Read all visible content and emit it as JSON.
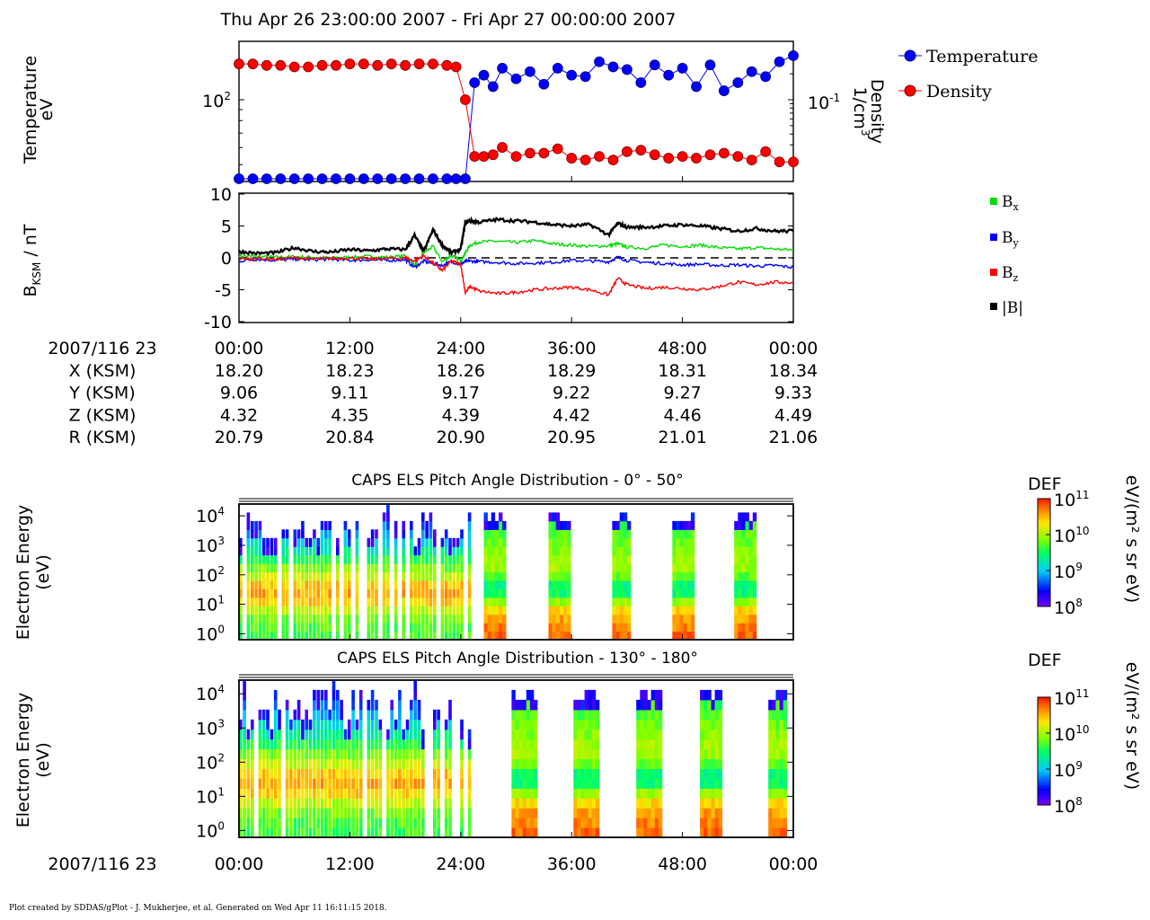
{
  "title": "Thu Apr 26 23:00:00 2007 - Fri Apr 27 00:00:00 2007",
  "footer": "Plot created by SDDAS/gPlot - J. Mukherjee, et al.  Generated on Wed Apr 11 16:11:15 2018.",
  "time_axis": {
    "label": "2007/116 23",
    "ticks": [
      "00:00",
      "12:00",
      "24:00",
      "36:00",
      "48:00",
      "00:00"
    ]
  },
  "ephemeris": [
    {
      "label": "X (KSM)",
      "values": [
        "18.20",
        "18.23",
        "18.26",
        "18.29",
        "18.31",
        "18.34"
      ]
    },
    {
      "label": "Y (KSM)",
      "values": [
        "9.06",
        "9.11",
        "9.17",
        "9.22",
        "9.27",
        "9.33"
      ]
    },
    {
      "label": "Z (KSM)",
      "values": [
        "4.32",
        "4.35",
        "4.39",
        "4.42",
        "4.46",
        "4.49"
      ]
    },
    {
      "label": "R (KSM)",
      "values": [
        "20.79",
        "20.84",
        "20.90",
        "20.95",
        "21.01",
        "21.06"
      ]
    }
  ],
  "colors": {
    "temperature": "#0000ff",
    "density": "#ff0000",
    "bx": "#00dd00",
    "by": "#0000ff",
    "bz": "#ff0000",
    "btot": "#000000"
  },
  "chart_data": [
    {
      "type": "scatter",
      "panel": "plasma moments",
      "ylabel": "Temperature",
      "yunit": "eV",
      "ytick_label": "10",
      "ytick_exp": "2",
      "y2label": "Density",
      "y2unit": "1/cm",
      "y2unit_exp": "3",
      "y2tick_label": "10",
      "y2tick_exp": "-1",
      "xlim": [
        0,
        60
      ],
      "legend_position": "top-right",
      "series": [
        {
          "name": "Temperature",
          "axis": "left",
          "color": "#0000ff",
          "x": [
            0,
            1.5,
            3,
            4.5,
            6,
            7.5,
            9,
            10.5,
            12,
            13.5,
            15,
            16.5,
            18,
            19.5,
            21,
            22.5,
            23.5,
            24.5,
            25.5,
            26.5,
            27.5,
            28.5,
            30,
            31.5,
            33,
            34.5,
            36,
            37.5,
            39,
            40.5,
            42,
            43.5,
            45,
            46.5,
            48,
            49.5,
            51,
            52.5,
            54,
            55.5,
            57,
            58.5,
            60
          ],
          "y": [
            15,
            15,
            16,
            16,
            16,
            17,
            16,
            16,
            16,
            16,
            17,
            17,
            17,
            18,
            19,
            20,
            23,
            32,
            120,
            130,
            115,
            140,
            125,
            135,
            118,
            140,
            130,
            128,
            150,
            142,
            138,
            120,
            145,
            130,
            140,
            115,
            145,
            110,
            120,
            135,
            128,
            150,
            160
          ]
        },
        {
          "name": "Density",
          "axis": "right",
          "color": "#ff0000",
          "x": [
            0,
            1.5,
            3,
            4.5,
            6,
            7.5,
            9,
            10.5,
            12,
            13.5,
            15,
            16.5,
            18,
            19.5,
            21,
            22.5,
            23.5,
            24.5,
            25.5,
            26.5,
            27.5,
            28.5,
            30,
            31.5,
            33,
            34.5,
            36,
            37.5,
            39,
            40.5,
            42,
            43.5,
            45,
            46.5,
            48,
            49.5,
            51,
            52.5,
            54,
            55.5,
            57,
            58.5,
            60
          ],
          "y": [
            0.26,
            0.26,
            0.25,
            0.25,
            0.24,
            0.24,
            0.25,
            0.25,
            0.26,
            0.26,
            0.25,
            0.26,
            0.25,
            0.26,
            0.26,
            0.25,
            0.24,
            0.1,
            0.022,
            0.022,
            0.023,
            0.028,
            0.022,
            0.024,
            0.024,
            0.027,
            0.021,
            0.02,
            0.022,
            0.02,
            0.025,
            0.026,
            0.023,
            0.021,
            0.022,
            0.021,
            0.023,
            0.024,
            0.022,
            0.02,
            0.025,
            0.019,
            0.019
          ]
        }
      ]
    },
    {
      "type": "line",
      "panel": "magnetic field",
      "ylabel": "B",
      "ylabel_sub": "KSM",
      "yunit": " / nT",
      "ylim": [
        -10,
        10
      ],
      "yticks": [
        10,
        5,
        0,
        -5,
        -10
      ],
      "xlim": [
        0,
        60
      ],
      "zero_line": true,
      "legend_position": "right",
      "series": [
        {
          "name": "B",
          "sub": "x",
          "color": "#00dd00",
          "x": [
            0,
            2,
            4,
            6,
            8,
            10,
            12,
            14,
            16,
            18,
            19,
            20,
            21,
            22,
            23,
            24,
            24.5,
            25,
            26,
            28,
            30,
            32,
            34,
            36,
            38,
            40,
            41,
            42,
            44,
            46,
            48,
            50,
            52,
            54,
            56,
            58,
            60
          ],
          "y": [
            0.3,
            0.2,
            0.1,
            0.2,
            0.1,
            0.0,
            0.1,
            0.2,
            0.1,
            0.3,
            -1.2,
            0.8,
            1.8,
            -0.6,
            0.4,
            -0.5,
            0.8,
            2.0,
            2.5,
            2.6,
            2.4,
            2.7,
            2.2,
            2.0,
            1.8,
            1.9,
            2.2,
            1.7,
            1.5,
            2.0,
            1.8,
            2.0,
            1.6,
            1.4,
            1.6,
            1.4,
            1.2
          ]
        },
        {
          "name": "B",
          "sub": "y",
          "color": "#0000ff",
          "x": [
            0,
            2,
            4,
            6,
            8,
            10,
            12,
            14,
            16,
            18,
            19,
            20,
            21,
            22,
            23,
            24,
            24.5,
            25,
            26,
            28,
            30,
            32,
            34,
            36,
            38,
            40,
            41,
            42,
            44,
            46,
            48,
            50,
            52,
            54,
            56,
            58,
            60
          ],
          "y": [
            -0.5,
            -0.2,
            -0.4,
            -0.2,
            -0.3,
            -0.2,
            -0.4,
            -0.3,
            -0.4,
            -0.3,
            -1.5,
            -0.5,
            -0.9,
            -1.2,
            -0.6,
            -1.0,
            -0.6,
            -0.5,
            -0.6,
            -0.7,
            -0.9,
            -0.8,
            -0.7,
            -0.4,
            -0.5,
            -0.6,
            0.1,
            -0.4,
            -0.7,
            -0.9,
            -1.1,
            -1.0,
            -1.2,
            -1.1,
            -1.3,
            -1.2,
            -1.5
          ]
        },
        {
          "name": "B",
          "sub": "z",
          "color": "#ff0000",
          "x": [
            0,
            2,
            4,
            6,
            8,
            10,
            12,
            14,
            16,
            18,
            19,
            20,
            21,
            22,
            23,
            24,
            24.5,
            25,
            26,
            28,
            30,
            32,
            34,
            36,
            38,
            40,
            41,
            42,
            44,
            46,
            48,
            50,
            52,
            54,
            56,
            58,
            60
          ],
          "y": [
            -0.2,
            -0.1,
            -0.2,
            0.0,
            -0.2,
            -0.1,
            0.0,
            -0.2,
            -0.1,
            0.0,
            -0.5,
            0.3,
            -0.8,
            -2.0,
            -0.5,
            -1.0,
            -5.5,
            -4.5,
            -5.2,
            -5.6,
            -5.4,
            -5.0,
            -4.8,
            -4.6,
            -5.0,
            -5.8,
            -3.2,
            -4.2,
            -4.8,
            -4.6,
            -4.8,
            -5.0,
            -4.5,
            -3.8,
            -4.2,
            -3.8,
            -3.9
          ]
        },
        {
          "name": "|B|",
          "sub": "",
          "color": "#000000",
          "x": [
            0,
            2,
            4,
            6,
            8,
            10,
            12,
            14,
            16,
            18,
            19,
            20,
            21,
            22,
            23,
            24,
            24.5,
            25,
            26,
            28,
            30,
            32,
            34,
            36,
            38,
            40,
            41,
            42,
            44,
            46,
            48,
            50,
            52,
            54,
            56,
            58,
            60
          ],
          "y": [
            1.0,
            0.7,
            0.8,
            1.6,
            1.0,
            0.9,
            1.3,
            1.1,
            1.4,
            1.3,
            3.5,
            1.0,
            4.4,
            2.0,
            0.8,
            1.4,
            5.5,
            5.8,
            5.6,
            6.0,
            5.8,
            5.6,
            5.2,
            5.0,
            5.2,
            3.6,
            5.4,
            4.8,
            4.8,
            5.0,
            5.2,
            5.0,
            4.6,
            4.2,
            4.6,
            4.2,
            4.2
          ]
        }
      ]
    },
    {
      "type": "heatmap",
      "title": "CAPS ELS Pitch Angle Distribution - 0° - 50°",
      "ylabel": "Electron Energy",
      "yunit": "(eV)",
      "ytick_exponents": [
        "4",
        "3",
        "2",
        "1",
        "0"
      ],
      "ytick_base": "10",
      "xlim": [
        0,
        60
      ],
      "ylim_log10": [
        -0.2,
        4.4
      ],
      "colorbar": {
        "label": "DEF",
        "unit": "eV/(m² s sr eV)",
        "base": "10",
        "exponents": [
          "11",
          "10",
          "9",
          "8"
        ],
        "log_range": [
          8,
          11
        ]
      },
      "dense_segment_minutes": [
        0,
        25
      ],
      "intervals_minutes": [
        [
          26.5,
          28.7
        ],
        [
          33.5,
          35.7
        ],
        [
          40.4,
          42.1
        ],
        [
          46.9,
          48.9
        ],
        [
          53.6,
          55.9
        ]
      ]
    },
    {
      "type": "heatmap",
      "title": "CAPS ELS Pitch Angle Distribution - 130° - 180°",
      "ylabel": "Electron Energy",
      "yunit": "(eV)",
      "ytick_exponents": [
        "4",
        "3",
        "2",
        "1",
        "0"
      ],
      "ytick_base": "10",
      "xlim": [
        0,
        60
      ],
      "ylim_log10": [
        -0.2,
        4.4
      ],
      "colorbar": {
        "label": "DEF",
        "unit": "eV/(m² s sr eV)",
        "base": "10",
        "exponents": [
          "11",
          "10",
          "9",
          "8"
        ],
        "log_range": [
          8,
          11
        ]
      },
      "dense_segment_minutes": [
        0,
        25
      ],
      "intervals_minutes": [
        [
          29.5,
          32.0
        ],
        [
          36.2,
          38.9
        ],
        [
          43.0,
          45.6
        ],
        [
          49.9,
          52.2
        ],
        [
          57.3,
          59.2
        ]
      ]
    }
  ]
}
